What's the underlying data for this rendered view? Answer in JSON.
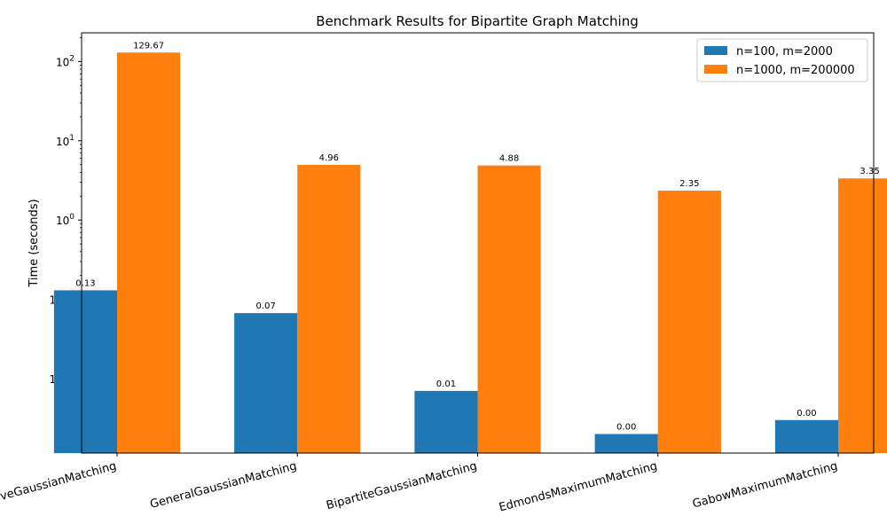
{
  "chart_data": {
    "type": "bar",
    "title": "Benchmark Results for Bipartite Graph Matching",
    "xlabel": "",
    "ylabel": "Time (seconds)",
    "yscale": "log",
    "ylim": [
      0.00115,
      230
    ],
    "yticks": [
      {
        "value": 0.01,
        "base": "10",
        "exp": "−2"
      },
      {
        "value": 0.1,
        "base": "10",
        "exp": "−1"
      },
      {
        "value": 1,
        "base": "10",
        "exp": "0"
      },
      {
        "value": 10,
        "base": "10",
        "exp": "1"
      },
      {
        "value": 100,
        "base": "10",
        "exp": "2"
      }
    ],
    "categories": [
      "NaiveGaussianMatching",
      "GeneralGaussianMatching",
      "BipartiteGaussianMatching",
      "EdmondsMaximumMatching",
      "GabowMaximumMatching"
    ],
    "series": [
      {
        "name": "n=100, m=2000",
        "color": "#1f77b4",
        "values": [
          0.13,
          0.067,
          0.007,
          0.002,
          0.003
        ],
        "labels": [
          "0.13",
          "0.07",
          "0.01",
          "0.00",
          "0.00"
        ]
      },
      {
        "name": "n=1000, m=200000",
        "color": "#ff7f0e",
        "values": [
          129.67,
          4.96,
          4.88,
          2.35,
          3.35
        ],
        "labels": [
          "129.67",
          "4.96",
          "4.88",
          "2.35",
          "3.35"
        ]
      }
    ],
    "legend_position": "top-right",
    "grid": false
  }
}
